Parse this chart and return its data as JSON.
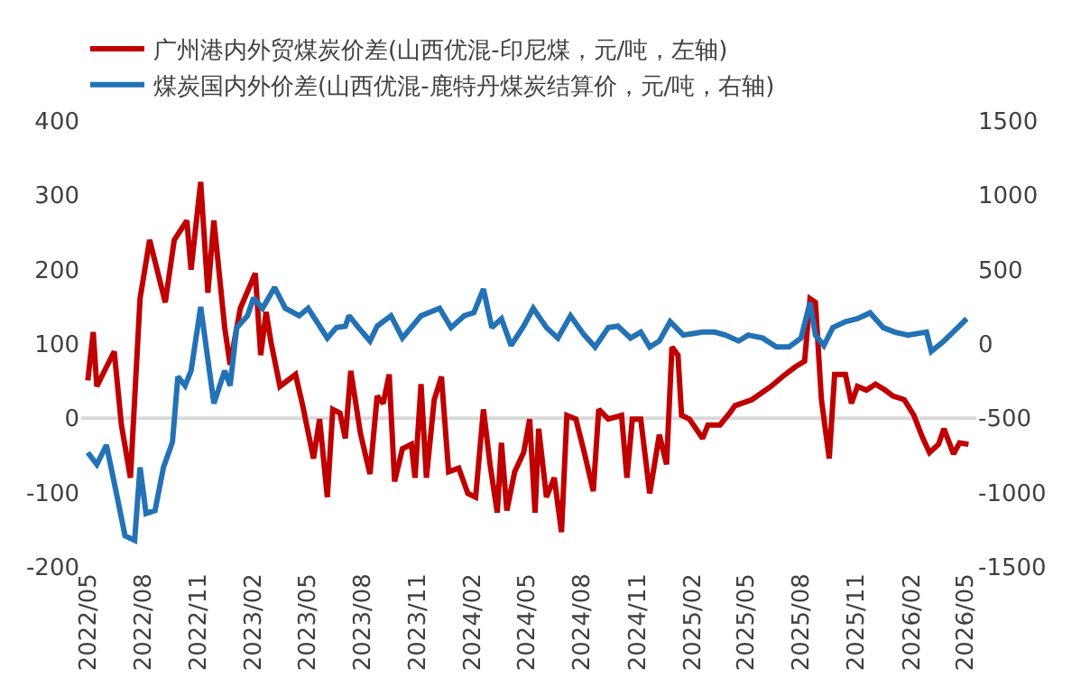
{
  "chart_data": {
    "type": "line",
    "legend": "top",
    "grid": false,
    "line_style": "solid",
    "marker": "none",
    "xlim": [
      "2022-04-20",
      "2026-05-20"
    ],
    "xticks": [
      {
        "value": "2022-05-01",
        "label": "2022/05"
      },
      {
        "value": "2022-08-01",
        "label": "2022/08"
      },
      {
        "value": "2022-11-01",
        "label": "2022/11"
      },
      {
        "value": "2023-02-01",
        "label": "2023/02"
      },
      {
        "value": "2023-05-01",
        "label": "2023/05"
      },
      {
        "value": "2023-08-01",
        "label": "2023/08"
      },
      {
        "value": "2023-11-01",
        "label": "2023/11"
      },
      {
        "value": "2024-02-01",
        "label": "2024/02"
      },
      {
        "value": "2024-05-01",
        "label": "2024/05"
      },
      {
        "value": "2024-08-01",
        "label": "2024/08"
      },
      {
        "value": "2024-11-01",
        "label": "2024/11"
      },
      {
        "value": "2025-02-01",
        "label": "2025/02"
      },
      {
        "value": "2025-05-01",
        "label": "2025/05"
      },
      {
        "value": "2025-08-01",
        "label": "2025/08"
      },
      {
        "value": "2025-11-01",
        "label": "2025/11"
      },
      {
        "value": "2026-02-01",
        "label": "2026/02"
      },
      {
        "value": "2026-05-01",
        "label": "2026/05"
      }
    ],
    "ylim": [
      -200,
      400
    ],
    "yticks": [
      -200,
      -100,
      0,
      100,
      200,
      300,
      400
    ],
    "y2lim": [
      -1500,
      1500
    ],
    "y2ticks": [
      -1500,
      -1000,
      -500,
      0,
      500,
      1000,
      1500
    ],
    "series": [
      {
        "name": "广州港内外贸煤炭价差(山西优混-印尼煤，元/吨，左轴)",
        "color": "#c00000",
        "x": [
          "2022-05-01",
          "2022-05-10",
          "2022-05-16",
          "2022-06-01",
          "2022-06-14",
          "2022-06-26",
          "2022-07-11",
          "2022-07-27",
          "2022-08-12",
          "2022-09-07",
          "2022-09-22",
          "2022-10-13",
          "2022-10-20",
          "2022-11-05",
          "2022-11-17",
          "2022-11-27",
          "2022-12-15",
          "2022-12-24",
          "2023-01-10",
          "2023-02-04",
          "2023-02-13",
          "2023-02-22",
          "2023-03-02",
          "2023-03-17",
          "2023-04-12",
          "2023-04-24",
          "2023-05-12",
          "2023-05-22",
          "2023-06-04",
          "2023-06-13",
          "2023-06-25",
          "2023-07-04",
          "2023-07-13",
          "2023-07-29",
          "2023-08-14",
          "2023-08-26",
          "2023-09-05",
          "2023-09-15",
          "2023-09-24",
          "2023-10-07",
          "2023-10-22",
          "2023-10-28",
          "2023-11-07",
          "2023-11-16",
          "2023-11-29",
          "2023-12-11",
          "2023-12-23",
          "2024-01-09",
          "2024-01-24",
          "2024-02-06",
          "2024-02-19",
          "2024-03-01",
          "2024-03-13",
          "2024-03-20",
          "2024-03-29",
          "2024-04-11",
          "2024-04-26",
          "2024-05-06",
          "2024-05-15",
          "2024-05-21",
          "2024-06-03",
          "2024-06-16",
          "2024-06-28",
          "2024-07-07",
          "2024-07-22",
          "2024-08-05",
          "2024-08-20",
          "2024-08-29",
          "2024-09-14",
          "2024-10-06",
          "2024-10-15",
          "2024-10-24",
          "2024-11-07",
          "2024-11-22",
          "2024-12-08",
          "2024-12-20",
          "2024-12-29",
          "2025-01-08",
          "2025-01-14",
          "2025-01-27",
          "2025-02-18",
          "2025-02-27",
          "2025-03-19",
          "2025-04-04",
          "2025-04-13",
          "2025-05-11",
          "2025-06-12",
          "2025-07-01",
          "2025-07-22",
          "2025-08-07",
          "2025-08-16",
          "2025-08-25",
          "2025-09-04",
          "2025-09-17",
          "2025-09-26",
          "2025-10-14",
          "2025-10-24",
          "2025-11-03",
          "2025-11-18",
          "2025-12-03",
          "2025-12-19",
          "2026-01-01",
          "2026-01-20",
          "2026-02-05",
          "2026-02-20",
          "2026-03-03",
          "2026-03-18",
          "2026-03-27",
          "2026-04-12",
          "2026-04-22",
          "2026-05-07"
        ],
        "values": [
          51,
          116,
          43,
          69,
          90,
          -9,
          -80,
          161,
          240,
          156,
          240,
          266,
          200,
          318,
          169,
          266,
          122,
          72,
          148,
          195,
          85,
          143,
          103,
          43,
          59,
          17,
          -54,
          -1,
          -106,
          12,
          7,
          -27,
          64,
          -20,
          -75,
          30,
          20,
          59,
          -85,
          -41,
          -35,
          -80,
          46,
          -80,
          25,
          56,
          -72,
          -67,
          -101,
          -106,
          12,
          -62,
          -127,
          -33,
          -124,
          -72,
          -46,
          -1,
          -127,
          -14,
          -106,
          -80,
          -153,
          4,
          -1,
          -46,
          -98,
          12,
          -1,
          4,
          -80,
          -1,
          -1,
          -101,
          -22,
          -62,
          96,
          85,
          4,
          -1,
          -27,
          -9,
          -9,
          7,
          17,
          25,
          43,
          56,
          69,
          77,
          161,
          156,
          25,
          -54,
          59,
          59,
          20,
          43,
          38,
          46,
          38,
          30,
          25,
          4,
          -27,
          -46,
          -35,
          -14,
          -48,
          -33,
          -35
        ]
      },
      {
        "name": "煤炭国内外价差(山西优混-鹿特丹煤炭结算价，元/吨，右轴)",
        "color": "#2372b5",
        "axis": "y2",
        "x": [
          "2022-05-01",
          "2022-05-16",
          "2022-06-01",
          "2022-06-17",
          "2022-07-02",
          "2022-07-18",
          "2022-07-27",
          "2022-08-06",
          "2022-08-21",
          "2022-09-04",
          "2022-09-19",
          "2022-09-28",
          "2022-10-10",
          "2022-10-20",
          "2022-11-05",
          "2022-11-27",
          "2022-12-15",
          "2022-12-24",
          "2023-01-04",
          "2023-01-22",
          "2023-02-01",
          "2023-02-16",
          "2023-03-08",
          "2023-03-26",
          "2023-04-18",
          "2023-05-03",
          "2023-06-04",
          "2023-06-19",
          "2023-07-04",
          "2023-07-10",
          "2023-07-26",
          "2023-08-14",
          "2023-08-26",
          "2023-09-18",
          "2023-10-07",
          "2023-11-07",
          "2023-12-08",
          "2023-12-27",
          "2024-01-18",
          "2024-02-03",
          "2024-02-19",
          "2024-03-04",
          "2024-03-20",
          "2024-04-05",
          "2024-04-26",
          "2024-05-12",
          "2024-06-03",
          "2024-06-22",
          "2024-07-13",
          "2024-08-05",
          "2024-08-23",
          "2024-09-14",
          "2024-09-30",
          "2024-10-21",
          "2024-11-07",
          "2024-11-22",
          "2024-12-08",
          "2024-12-26",
          "2025-01-17",
          "2025-02-18",
          "2025-03-10",
          "2025-03-28",
          "2025-04-19",
          "2025-05-05",
          "2025-05-29",
          "2025-06-21",
          "2025-07-12",
          "2025-08-01",
          "2025-08-16",
          "2025-08-25",
          "2025-09-08",
          "2025-09-23",
          "2025-10-14",
          "2025-11-03",
          "2025-11-24",
          "2025-12-16",
          "2026-01-04",
          "2026-01-26",
          "2026-02-26",
          "2026-03-06",
          "2026-03-27",
          "2026-04-19",
          "2026-05-04"
        ],
        "values": [
          -730,
          -810,
          -680,
          -990,
          -1290,
          -1320,
          -830,
          -1140,
          -1120,
          -830,
          -660,
          -220,
          -280,
          -180,
          250,
          -400,
          -180,
          -280,
          110,
          190,
          310,
          240,
          380,
          240,
          190,
          240,
          40,
          110,
          120,
          190,
          110,
          20,
          120,
          190,
          40,
          190,
          240,
          110,
          190,
          210,
          370,
          110,
          170,
          -10,
          120,
          240,
          110,
          40,
          190,
          60,
          -20,
          110,
          120,
          40,
          80,
          -20,
          20,
          150,
          60,
          80,
          80,
          60,
          20,
          60,
          40,
          -20,
          -20,
          40,
          280,
          60,
          -10,
          110,
          150,
          170,
          210,
          110,
          80,
          60,
          80,
          -50,
          20,
          110,
          170
        ]
      }
    ],
    "ref_lines": [
      {
        "axis": "y",
        "value": 0,
        "color": "#d9d9d9"
      }
    ]
  }
}
